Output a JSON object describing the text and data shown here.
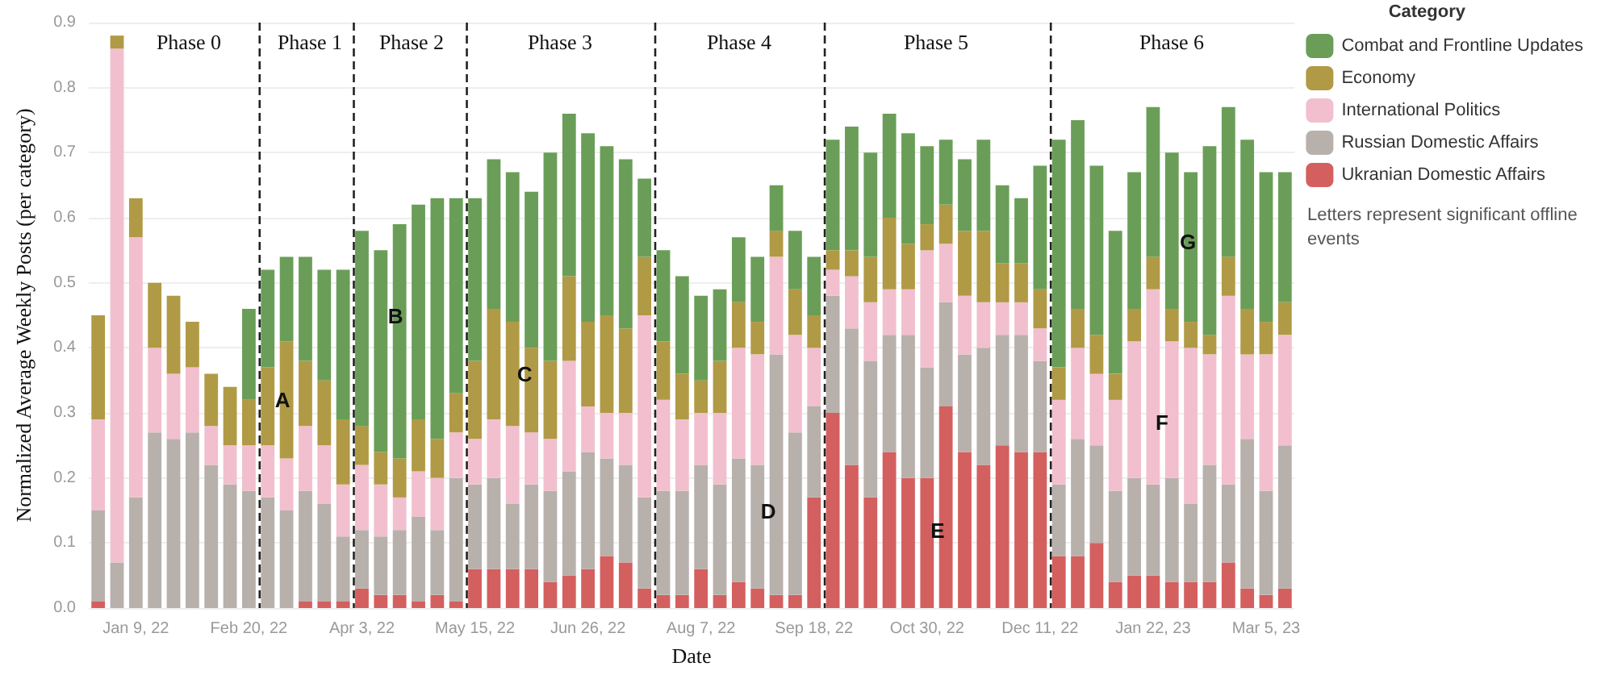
{
  "chart_data": {
    "type": "bar",
    "stacked": true,
    "xlabel": "Date",
    "ylabel": "Normalized Average Weekly Posts (per category)",
    "legend_title": "Category",
    "legend": "top right",
    "grid": "y",
    "x": [
      "2021-12-26",
      "2022-01-02",
      "2022-01-09",
      "2022-01-16",
      "2022-01-23",
      "2022-01-30",
      "2022-02-06",
      "2022-02-13",
      "2022-02-20",
      "2022-02-27",
      "2022-03-06",
      "2022-03-13",
      "2022-03-20",
      "2022-03-27",
      "2022-04-03",
      "2022-04-10",
      "2022-04-17",
      "2022-04-24",
      "2022-05-01",
      "2022-05-08",
      "2022-05-15",
      "2022-05-22",
      "2022-05-29",
      "2022-06-05",
      "2022-06-12",
      "2022-06-19",
      "2022-06-26",
      "2022-07-03",
      "2022-07-10",
      "2022-07-17",
      "2022-07-24",
      "2022-07-31",
      "2022-08-07",
      "2022-08-14",
      "2022-08-21",
      "2022-08-28",
      "2022-09-04",
      "2022-09-11",
      "2022-09-18",
      "2022-09-25",
      "2022-10-02",
      "2022-10-09",
      "2022-10-16",
      "2022-10-23",
      "2022-10-30",
      "2022-11-06",
      "2022-11-13",
      "2022-11-20",
      "2022-11-27",
      "2022-12-04",
      "2022-12-11",
      "2022-12-18",
      "2022-12-25",
      "2023-01-01",
      "2023-01-08",
      "2023-01-15",
      "2023-01-22",
      "2023-01-29",
      "2023-02-05",
      "2023-02-12",
      "2023-02-19",
      "2023-02-26",
      "2023-03-05",
      "2023-03-12"
    ],
    "xlim": [
      "2021-12-22",
      "2023-03-16"
    ],
    "xticks": [
      {
        "value": "2022-01-09",
        "label": "Jan 9, 22"
      },
      {
        "value": "2022-02-20",
        "label": "Feb 20, 22"
      },
      {
        "value": "2022-04-03",
        "label": "Apr 3, 22"
      },
      {
        "value": "2022-05-15",
        "label": "May 15, 22"
      },
      {
        "value": "2022-06-26",
        "label": "Jun 26, 22"
      },
      {
        "value": "2022-08-07",
        "label": "Aug 7, 22"
      },
      {
        "value": "2022-09-18",
        "label": "Sep 18, 22"
      },
      {
        "value": "2022-10-30",
        "label": "Oct 30, 22"
      },
      {
        "value": "2022-12-11",
        "label": "Dec 11, 22"
      },
      {
        "value": "2023-01-22",
        "label": "Jan 22, 23"
      },
      {
        "value": "2023-03-05",
        "label": "Mar 5, 23"
      }
    ],
    "ylim": [
      0,
      0.9
    ],
    "yticks": [
      {
        "value": 0,
        "label": "0.0"
      },
      0.1,
      0.2,
      0.3,
      0.4,
      0.5,
      0.6,
      0.7,
      0.8,
      0.9
    ],
    "series": [
      {
        "name": "Ukranian Domestic Affairs",
        "color": "#d45f5f",
        "values": [
          0.01,
          0,
          0,
          0,
          0,
          0,
          0,
          0,
          0,
          0,
          0,
          0.01,
          0.01,
          0.01,
          0.03,
          0.02,
          0.02,
          0.01,
          0.02,
          0.01,
          0.06,
          0.06,
          0.06,
          0.06,
          0.04,
          0.05,
          0.06,
          0.08,
          0.07,
          0.03,
          0.02,
          0.02,
          0.06,
          0.02,
          0.04,
          0.03,
          0.02,
          0.02,
          0.17,
          0.3,
          0.22,
          0.17,
          0.24,
          0.2,
          0.2,
          0.31,
          0.24,
          0.22,
          0.25,
          0.24,
          0.24,
          0.08,
          0.08,
          0.1,
          0.04,
          0.05,
          0.05,
          0.04,
          0.04,
          0.04,
          0.07,
          0.03,
          0.02,
          0.03
        ]
      },
      {
        "name": "Russian Domestic Affairs",
        "color": "#b8b0ab",
        "values": [
          0.14,
          0.07,
          0.17,
          0.27,
          0.26,
          0.27,
          0.22,
          0.19,
          0.18,
          0.17,
          0.15,
          0.17,
          0.15,
          0.1,
          0.09,
          0.09,
          0.1,
          0.13,
          0.1,
          0.19,
          0.13,
          0.14,
          0.1,
          0.13,
          0.14,
          0.16,
          0.18,
          0.15,
          0.15,
          0.14,
          0.16,
          0.16,
          0.16,
          0.17,
          0.19,
          0.19,
          0.37,
          0.25,
          0.14,
          0.18,
          0.21,
          0.21,
          0.18,
          0.22,
          0.17,
          0.16,
          0.15,
          0.18,
          0.17,
          0.18,
          0.14,
          0.11,
          0.18,
          0.15,
          0.14,
          0.15,
          0.14,
          0.16,
          0.12,
          0.18,
          0.12,
          0.23,
          0.16,
          0.22
        ]
      },
      {
        "name": "International Politics",
        "color": "#f2bfce",
        "values": [
          0.14,
          0.79,
          0.4,
          0.13,
          0.1,
          0.1,
          0.06,
          0.06,
          0.07,
          0.08,
          0.08,
          0.1,
          0.09,
          0.08,
          0.1,
          0.08,
          0.05,
          0.07,
          0.08,
          0.07,
          0.07,
          0.09,
          0.12,
          0.08,
          0.08,
          0.17,
          0.07,
          0.07,
          0.08,
          0.28,
          0.14,
          0.11,
          0.08,
          0.11,
          0.17,
          0.17,
          0.15,
          0.15,
          0.09,
          0.04,
          0.08,
          0.09,
          0.07,
          0.07,
          0.18,
          0.09,
          0.09,
          0.07,
          0.05,
          0.05,
          0.05,
          0.13,
          0.14,
          0.11,
          0.14,
          0.21,
          0.3,
          0.21,
          0.24,
          0.17,
          0.29,
          0.13,
          0.21,
          0.17
        ]
      },
      {
        "name": "Economy",
        "color": "#b09a45",
        "values": [
          0.16,
          0.02,
          0.06,
          0.1,
          0.12,
          0.07,
          0.08,
          0.09,
          0.07,
          0.12,
          0.18,
          0.1,
          0.1,
          0.1,
          0.06,
          0.05,
          0.06,
          0.08,
          0.06,
          0.06,
          0.12,
          0.17,
          0.16,
          0.13,
          0.12,
          0.13,
          0.13,
          0.15,
          0.13,
          0.09,
          0.09,
          0.07,
          0.05,
          0.08,
          0.07,
          0.05,
          0.04,
          0.07,
          0.05,
          0.03,
          0.04,
          0.07,
          0.11,
          0.07,
          0.04,
          0.06,
          0.1,
          0.11,
          0.06,
          0.06,
          0.06,
          0.05,
          0.06,
          0.06,
          0.04,
          0.05,
          0.05,
          0.05,
          0.04,
          0.03,
          0.06,
          0.07,
          0.05,
          0.05
        ]
      },
      {
        "name": "Combat and Frontline Updates",
        "color": "#6a9e58",
        "values": [
          0,
          0,
          0,
          0,
          0,
          0,
          0,
          0,
          0.14,
          0.15,
          0.13,
          0.16,
          0.17,
          0.23,
          0.3,
          0.31,
          0.36,
          0.33,
          0.37,
          0.3,
          0.25,
          0.23,
          0.23,
          0.24,
          0.32,
          0.25,
          0.29,
          0.26,
          0.26,
          0.12,
          0.14,
          0.15,
          0.13,
          0.11,
          0.1,
          0.1,
          0.07,
          0.09,
          0.09,
          0.17,
          0.19,
          0.16,
          0.16,
          0.17,
          0.12,
          0.1,
          0.11,
          0.14,
          0.12,
          0.1,
          0.19,
          0.35,
          0.29,
          0.26,
          0.22,
          0.21,
          0.23,
          0.24,
          0.23,
          0.29,
          0.23,
          0.26,
          0.23,
          0.2
        ]
      }
    ],
    "ref_lines": [
      {
        "axis": "x",
        "value": "2022-02-24",
        "line_style": "dashed",
        "color": "#222222"
      },
      {
        "axis": "x",
        "value": "2022-03-31",
        "line_style": "dashed",
        "color": "#222222"
      },
      {
        "axis": "x",
        "value": "2022-05-12",
        "line_style": "dashed",
        "color": "#222222"
      },
      {
        "axis": "x",
        "value": "2022-07-21",
        "line_style": "dashed",
        "color": "#222222"
      },
      {
        "axis": "x",
        "value": "2022-09-22",
        "line_style": "dashed",
        "color": "#222222"
      },
      {
        "axis": "x",
        "value": "2022-12-15",
        "line_style": "dashed",
        "color": "#222222"
      }
    ],
    "annotations": [
      "Phase 0",
      "Phase 1",
      "Phase 2",
      "Phase 3",
      "Phase 4",
      "Phase 5",
      "Phase 6",
      "A",
      "B",
      "C",
      "D",
      "E",
      "F",
      "G",
      "Letters represent significant offline  events"
    ]
  }
}
